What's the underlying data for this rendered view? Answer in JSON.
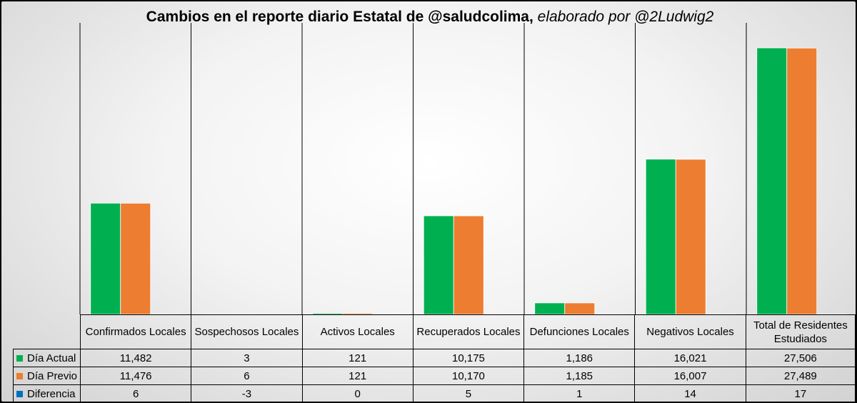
{
  "chart_data": {
    "type": "bar",
    "title": "Cambios en el reporte diario Estatal de @saludcolima,",
    "subtitle": "elaborado por @2Ludwig2",
    "categories": [
      "Confirmados Locales",
      "Sospechosos Locales",
      "Activos Locales",
      "Recuperados Locales",
      "Defunciones Locales",
      "Negativos Locales",
      "Total de Residentes Estudiados"
    ],
    "series": [
      {
        "name": "Día Actual",
        "color": "#00b050",
        "values": [
          11482,
          3,
          121,
          10175,
          1186,
          16021,
          27506
        ],
        "labels": [
          "11,482",
          "3",
          "121",
          "10,175",
          "1,186",
          "16,021",
          "27,506"
        ]
      },
      {
        "name": "Día Previo",
        "color": "#ed7d31",
        "values": [
          11476,
          6,
          121,
          10170,
          1185,
          16007,
          27489
        ],
        "labels": [
          "11,476",
          "6",
          "121",
          "10,170",
          "1,185",
          "16,007",
          "27,489"
        ]
      },
      {
        "name": "Diferencia",
        "color": "#0070c0",
        "values": [
          6,
          -3,
          0,
          5,
          1,
          14,
          17
        ],
        "labels": [
          "6",
          "-3",
          "0",
          "5",
          "1",
          "14",
          "17"
        ]
      }
    ],
    "legend": "data-table",
    "grid": true
  }
}
